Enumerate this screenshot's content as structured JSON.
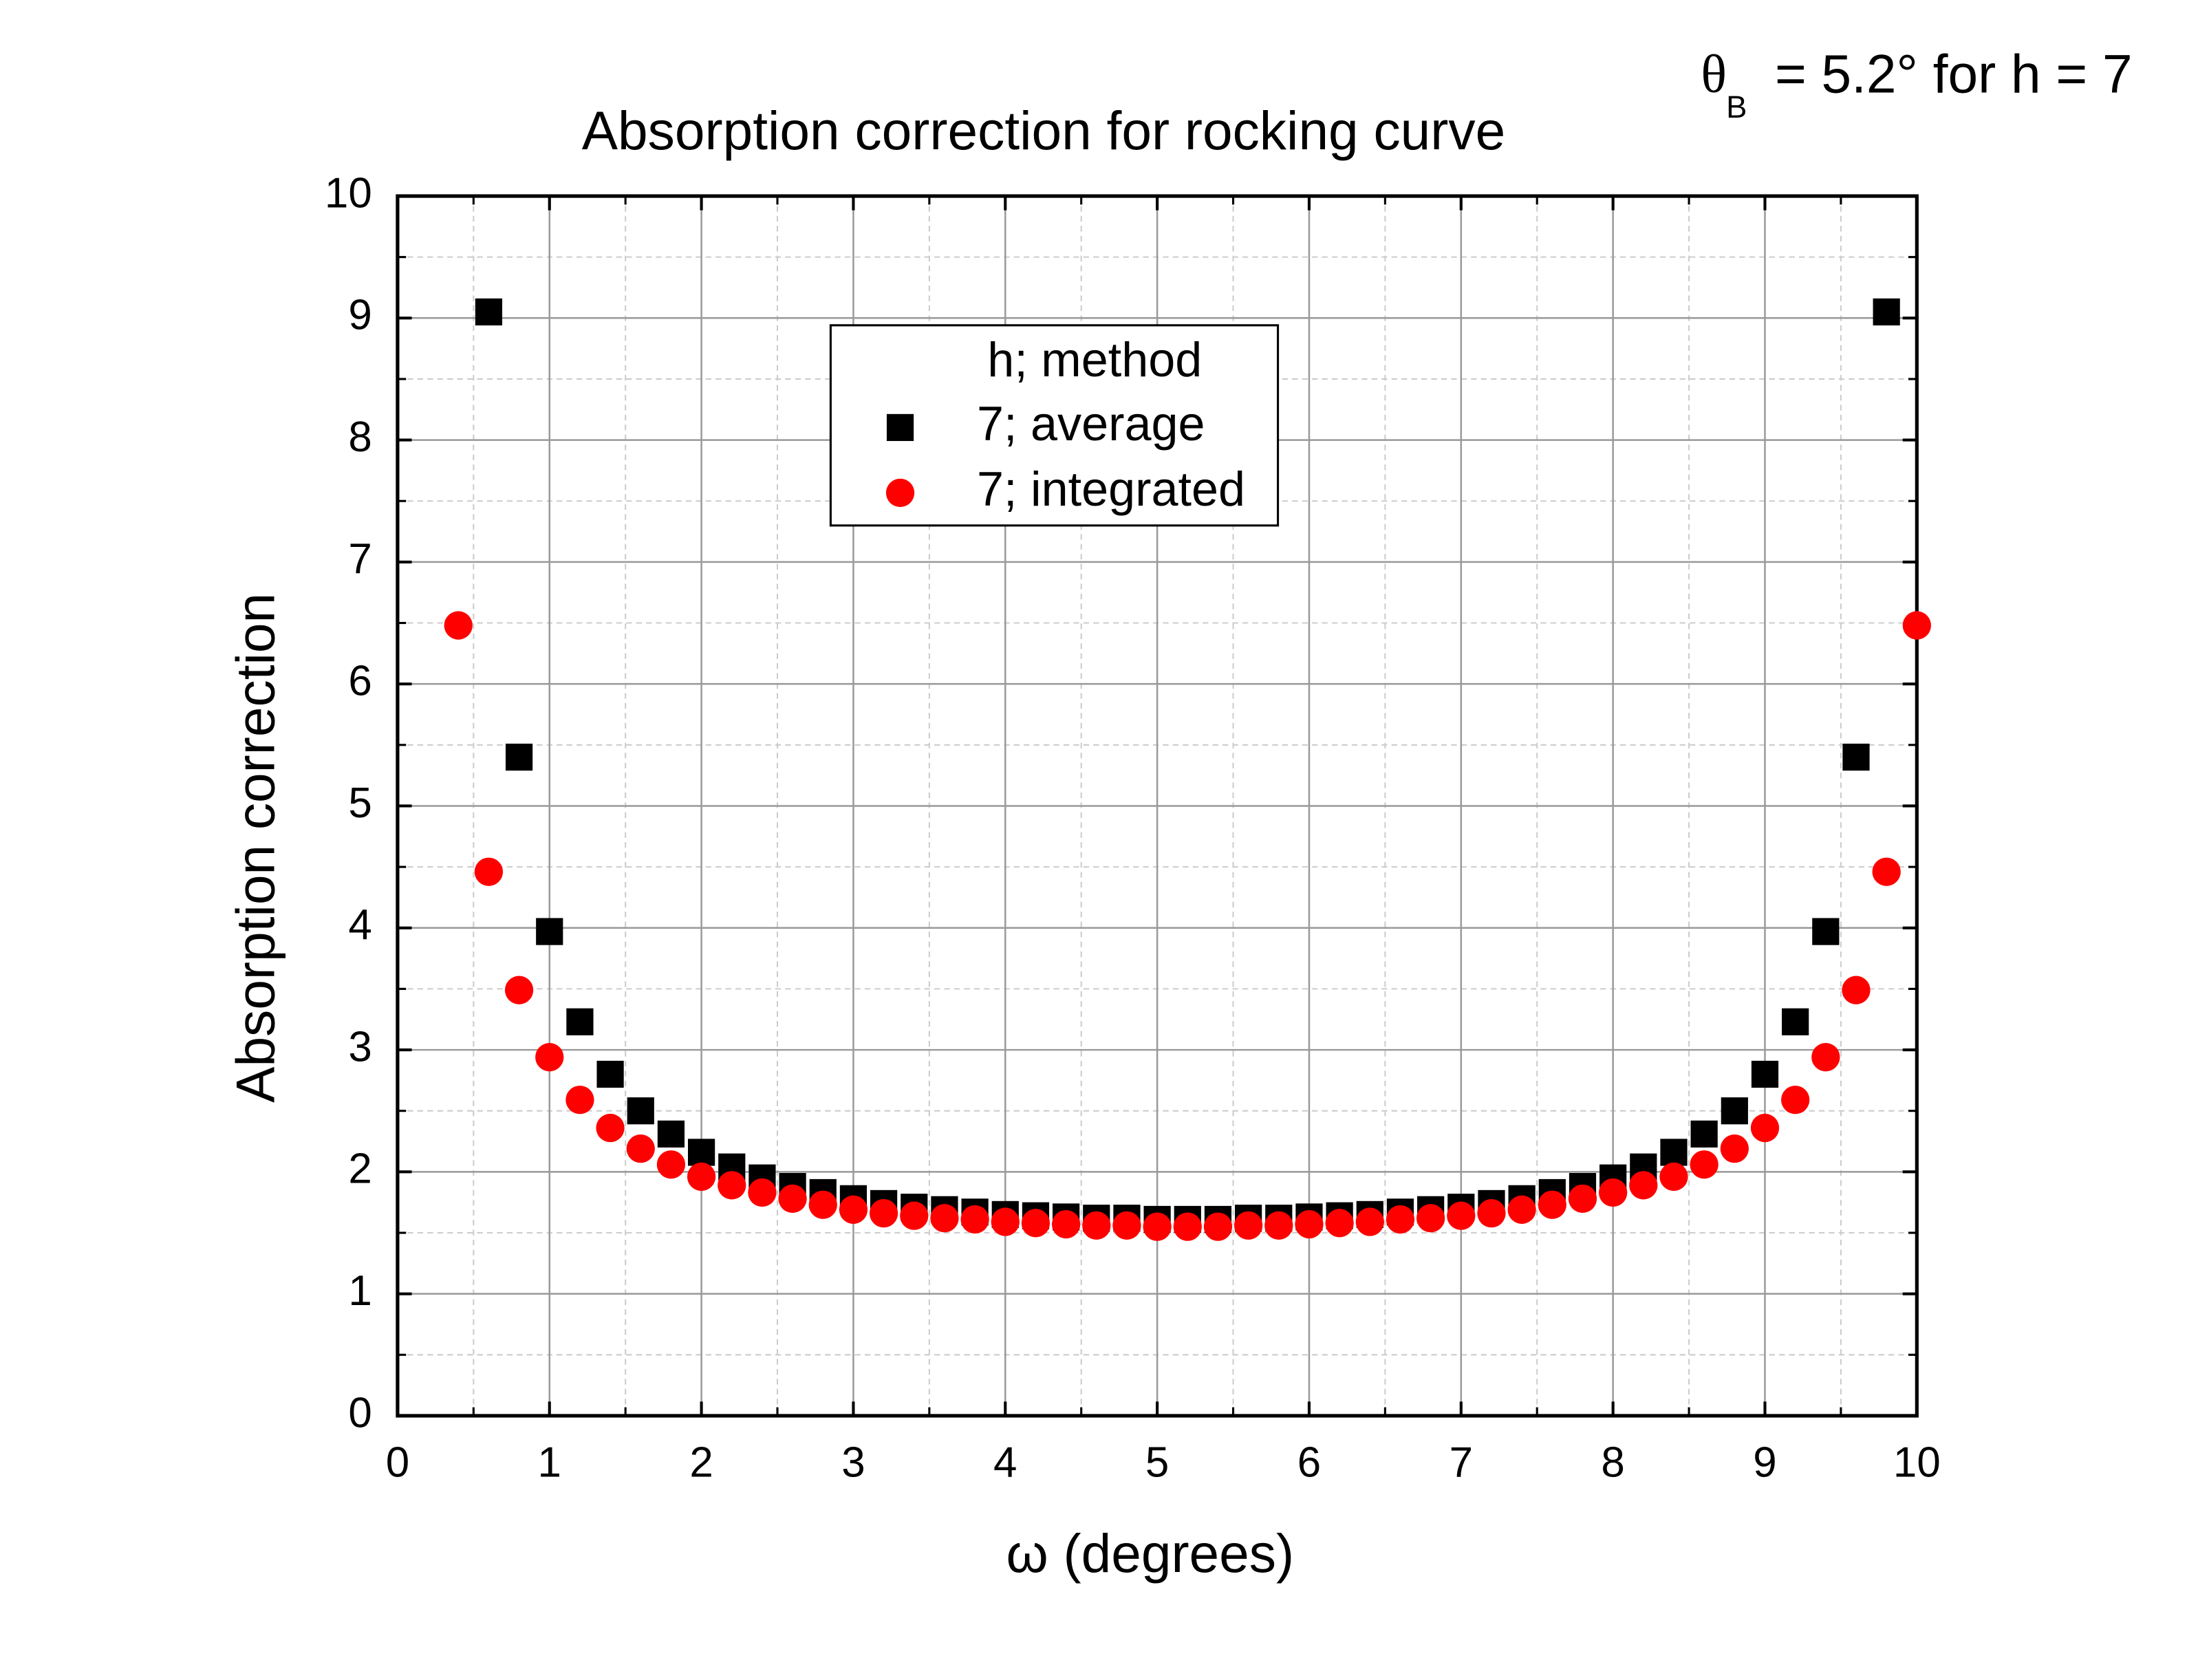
{
  "chart_data": {
    "type": "scatter",
    "title": "Absorption correction for rocking curve",
    "annotation": {
      "symbol": "θ",
      "subscript": "B",
      "text": "= 5.2° for h = 7"
    },
    "xlabel": "ω (degrees)",
    "ylabel": "Absorption correction",
    "xlim": [
      0,
      10
    ],
    "ylim": [
      0,
      10
    ],
    "xticks": [
      0,
      1,
      2,
      3,
      4,
      5,
      6,
      7,
      8,
      9,
      10
    ],
    "yticks": [
      0,
      1,
      2,
      3,
      4,
      5,
      6,
      7,
      8,
      9,
      10
    ],
    "xminor": [
      0.5,
      1.5,
      2.5,
      3.5,
      4.5,
      5.5,
      6.5,
      7.5,
      8.5,
      9.5
    ],
    "yminor": [
      0.5,
      1.5,
      2.5,
      3.5,
      4.5,
      5.5,
      6.5,
      7.5,
      8.5,
      9.5
    ],
    "grid": true,
    "legend_title": "h; method",
    "legend": "upper center",
    "series": [
      {
        "name": "7; average",
        "color": "#000000",
        "marker": "square",
        "x": [
          0.6,
          0.8,
          1.0,
          1.2,
          1.4,
          1.6,
          1.8,
          2.0,
          2.2,
          2.4,
          2.6,
          2.8,
          3.0,
          3.2,
          3.4,
          3.6,
          3.8,
          4.0,
          4.2,
          4.4,
          4.6,
          4.8,
          5.0,
          5.2,
          5.4,
          5.6,
          5.8,
          6.0,
          6.2,
          6.4,
          6.6,
          6.8,
          7.0,
          7.2,
          7.4,
          7.6,
          7.8,
          8.0,
          8.2,
          8.4,
          8.6,
          8.8,
          9.0,
          9.2,
          9.4,
          9.6,
          9.8
        ],
        "values": [
          9.05,
          5.4,
          3.97,
          3.23,
          2.8,
          2.5,
          2.31,
          2.16,
          2.04,
          1.95,
          1.88,
          1.83,
          1.78,
          1.74,
          1.71,
          1.69,
          1.67,
          1.65,
          1.64,
          1.63,
          1.62,
          1.62,
          1.61,
          1.61,
          1.61,
          1.62,
          1.62,
          1.63,
          1.64,
          1.65,
          1.67,
          1.69,
          1.71,
          1.74,
          1.78,
          1.83,
          1.88,
          1.95,
          2.04,
          2.16,
          2.31,
          2.5,
          2.8,
          3.23,
          3.97,
          5.4,
          9.05
        ]
      },
      {
        "name": "7; integrated",
        "color": "#ff0000",
        "marker": "circle",
        "x": [
          0.4,
          0.6,
          0.8,
          1.0,
          1.2,
          1.4,
          1.6,
          1.8,
          2.0,
          2.2,
          2.4,
          2.6,
          2.8,
          3.0,
          3.2,
          3.4,
          3.6,
          3.8,
          4.0,
          4.2,
          4.4,
          4.6,
          4.8,
          5.0,
          5.2,
          5.4,
          5.6,
          5.8,
          6.0,
          6.2,
          6.4,
          6.6,
          6.8,
          7.0,
          7.2,
          7.4,
          7.6,
          7.8,
          8.0,
          8.2,
          8.4,
          8.6,
          8.8,
          9.0,
          9.2,
          9.4,
          9.6,
          9.8,
          10.0
        ],
        "values": [
          6.48,
          4.46,
          3.49,
          2.94,
          2.59,
          2.36,
          2.19,
          2.06,
          1.96,
          1.89,
          1.83,
          1.78,
          1.73,
          1.69,
          1.66,
          1.64,
          1.62,
          1.61,
          1.59,
          1.58,
          1.57,
          1.56,
          1.56,
          1.55,
          1.55,
          1.55,
          1.56,
          1.56,
          1.57,
          1.58,
          1.59,
          1.61,
          1.62,
          1.64,
          1.66,
          1.69,
          1.73,
          1.78,
          1.83,
          1.89,
          1.96,
          2.06,
          2.19,
          2.36,
          2.59,
          2.94,
          3.49,
          4.46,
          6.48
        ]
      }
    ]
  }
}
